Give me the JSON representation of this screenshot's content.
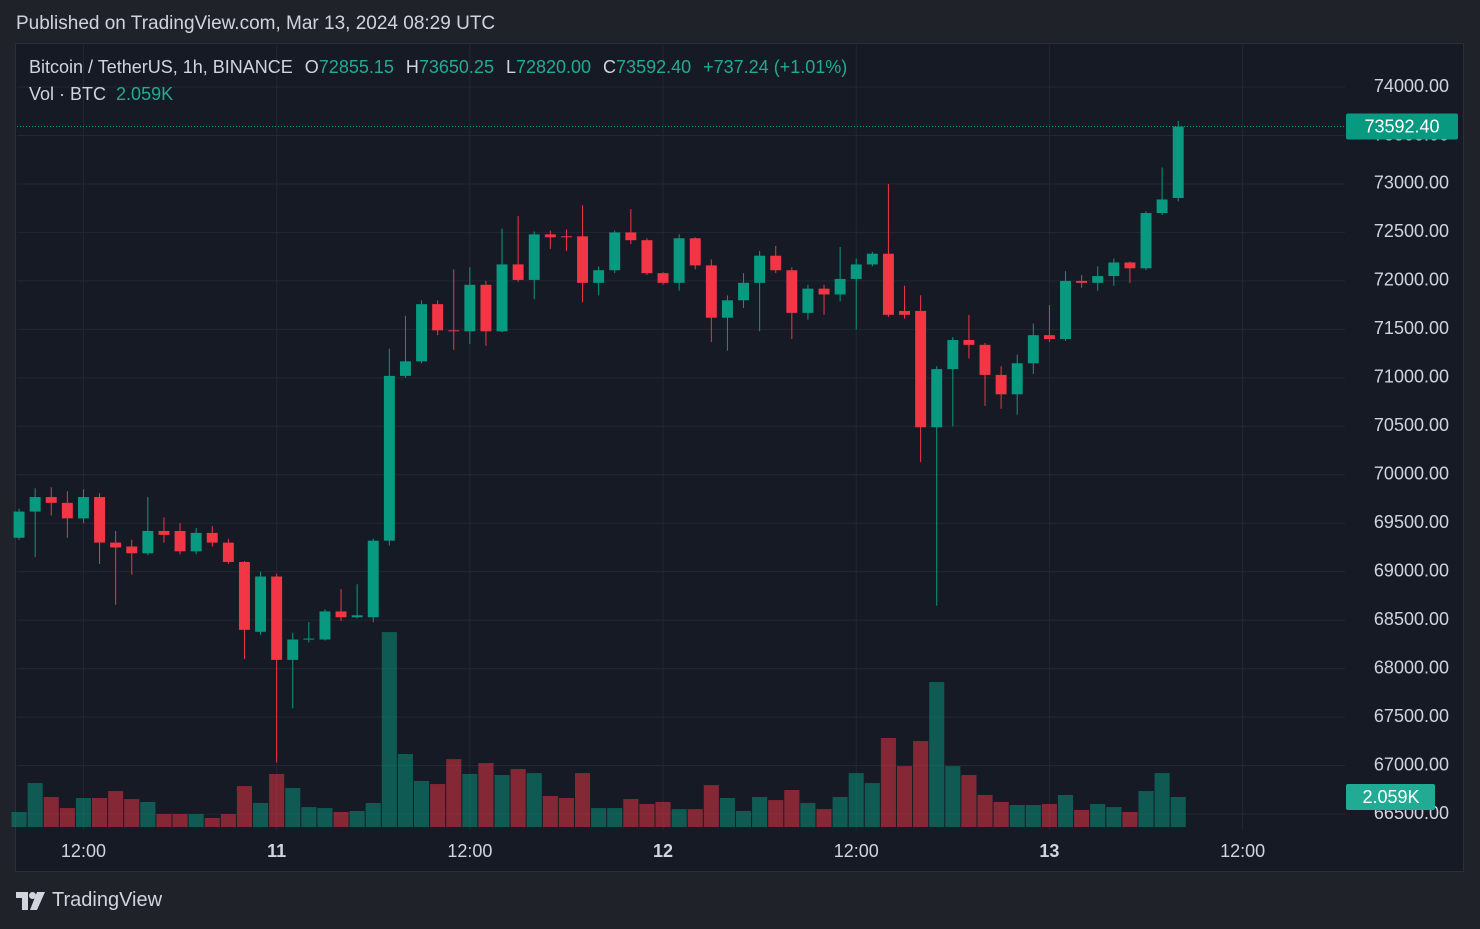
{
  "header": {
    "published": "Published on TradingView.com, Mar 13, 2024 08:29 UTC"
  },
  "chart_data": {
    "type": "candlestick",
    "symbol": "Bitcoin / TetherUS, 1h, BINANCE",
    "ohlc_legend": [
      {
        "key": "O",
        "value": "72855.15"
      },
      {
        "key": "H",
        "value": "73650.25"
      },
      {
        "key": "L",
        "value": "72820.00"
      },
      {
        "key": "C",
        "value": "73592.40"
      }
    ],
    "change": "+737.24 (+1.01%)",
    "volume_title": "Vol · BTC",
    "volume_label": "2.059K",
    "open": [
      69350,
      69620,
      69770,
      69710,
      69550,
      69770,
      69300,
      69260,
      69190,
      69420,
      69420,
      69210,
      69400,
      69300,
      69100,
      68380,
      68950,
      68090,
      68300,
      68300,
      68590,
      68530,
      68530,
      69320,
      71020,
      71170,
      71760,
      71490,
      71480,
      71960,
      71480,
      72170,
      72010,
      72480,
      72460,
      72460,
      71980,
      72110,
      72500,
      72420,
      72080,
      71980,
      72440,
      72160,
      71620,
      71800,
      71980,
      72260,
      72110,
      71670,
      71920,
      71860,
      72020,
      72170,
      72280,
      71690,
      71690,
      70490,
      71090,
      71390,
      71340,
      71030,
      70830,
      71150,
      71440,
      71400,
      72000,
      71980,
      72050,
      72190,
      72130,
      72700,
      72855.15
    ],
    "high": [
      69650,
      69860,
      69870,
      69830,
      69850,
      69810,
      69420,
      69330,
      69770,
      69560,
      69500,
      69450,
      69470,
      69340,
      69110,
      69000,
      68980,
      68370,
      68480,
      68610,
      68820,
      68870,
      69340,
      71300,
      71640,
      71800,
      71800,
      72120,
      72140,
      72000,
      72540,
      72670,
      72510,
      72520,
      72530,
      72780,
      72150,
      72520,
      72740,
      72440,
      72090,
      72480,
      72450,
      72220,
      71850,
      72080,
      72310,
      72360,
      72140,
      71960,
      71960,
      72350,
      72230,
      72300,
      73000,
      71950,
      71850,
      71120,
      71420,
      71650,
      71360,
      71120,
      71240,
      71560,
      71750,
      72100,
      72060,
      72150,
      72230,
      72200,
      72720,
      73170,
      73650.25
    ],
    "low": [
      69330,
      69150,
      69580,
      69350,
      69500,
      69080,
      68660,
      68970,
      69170,
      69300,
      69180,
      69180,
      69260,
      69080,
      68100,
      68350,
      67030,
      67590,
      68270,
      68290,
      68490,
      68520,
      68480,
      69270,
      71000,
      71150,
      71440,
      71290,
      71350,
      71330,
      71470,
      71990,
      71810,
      72330,
      72310,
      71780,
      71850,
      72080,
      72380,
      72060,
      71960,
      71900,
      72120,
      71370,
      71280,
      71720,
      71480,
      72080,
      71400,
      71600,
      71650,
      71790,
      71500,
      72150,
      71630,
      71610,
      70130,
      68650,
      70500,
      71200,
      70710,
      70680,
      70620,
      71040,
      71370,
      71380,
      71930,
      71900,
      71950,
      71980,
      72110,
      72680,
      72820
    ],
    "close": [
      69620,
      69770,
      69710,
      69550,
      69770,
      69300,
      69250,
      69190,
      69420,
      69380,
      69210,
      69400,
      69300,
      69100,
      68400,
      68950,
      68090,
      68300,
      68310,
      68590,
      68530,
      68550,
      69320,
      71020,
      71170,
      71760,
      71490,
      71480,
      71960,
      71480,
      72170,
      72010,
      72480,
      72450,
      72450,
      71980,
      72110,
      72500,
      72420,
      72080,
      71980,
      72440,
      72160,
      71620,
      71800,
      71980,
      72260,
      72110,
      71670,
      71920,
      71860,
      72020,
      72170,
      72280,
      71650,
      71650,
      70490,
      71090,
      71390,
      71340,
      71030,
      70830,
      71150,
      71440,
      71400,
      72000,
      71980,
      72050,
      72190,
      72130,
      72700,
      72840,
      73592.4
    ],
    "volume": [
      1030,
      3020,
      2060,
      1300,
      1990,
      1990,
      2470,
      1920,
      1720,
      890,
      890,
      890,
      620,
      890,
      2810,
      1650,
      3640,
      2680,
      1370,
      1300,
      1030,
      1100,
      1650,
      13380,
      5010,
      3160,
      2950,
      4660,
      3640,
      4390,
      3570,
      3980,
      3700,
      2130,
      1990,
      3700,
      1300,
      1300,
      1920,
      1580,
      1720,
      1230,
      1230,
      2880,
      1990,
      1100,
      2060,
      1850,
      2540,
      1650,
      1230,
      2060,
      3700,
      3020,
      6110,
      4180,
      5900,
      9950,
      4180,
      3570,
      2200,
      1720,
      1510,
      1510,
      1580,
      2200,
      1170,
      1580,
      1370,
      1030,
      2470,
      3700,
      2059
    ],
    "up_color": "#089981",
    "down_color": "#f23645",
    "xlim": [
      -0.19,
      82.36
    ],
    "xticks": [
      {
        "value": 4,
        "label": "12:00"
      },
      {
        "value": 16,
        "label": "11"
      },
      {
        "value": 28,
        "label": "12:00"
      },
      {
        "value": 40,
        "label": "12"
      },
      {
        "value": 52,
        "label": "12:00"
      },
      {
        "value": 64,
        "label": "13"
      },
      {
        "value": 76,
        "label": "12:00"
      }
    ],
    "ylim": [
      66335,
      74444
    ],
    "yticks": [
      {
        "value": 66500,
        "label": "66500.00"
      },
      {
        "value": 67000,
        "label": "67000.00"
      },
      {
        "value": 67500,
        "label": "67500.00"
      },
      {
        "value": 68000,
        "label": "68000.00"
      },
      {
        "value": 68500,
        "label": "68500.00"
      },
      {
        "value": 69000,
        "label": "69000.00"
      },
      {
        "value": 69500,
        "label": "69500.00"
      },
      {
        "value": 70000,
        "label": "70000.00"
      },
      {
        "value": 70500,
        "label": "70500.00"
      },
      {
        "value": 71000,
        "label": "71000.00"
      },
      {
        "value": 71500,
        "label": "71500.00"
      },
      {
        "value": 72000,
        "label": "72000.00"
      },
      {
        "value": 72500,
        "label": "72500.00"
      },
      {
        "value": 73000,
        "label": "73000.00"
      },
      {
        "value": 73500,
        "label": "73500.00"
      },
      {
        "value": 74000,
        "label": "74000.00"
      }
    ],
    "volume_ylim": [
      0,
      15000
    ],
    "grid": true
  },
  "footer": {
    "brand": "TradingView"
  }
}
